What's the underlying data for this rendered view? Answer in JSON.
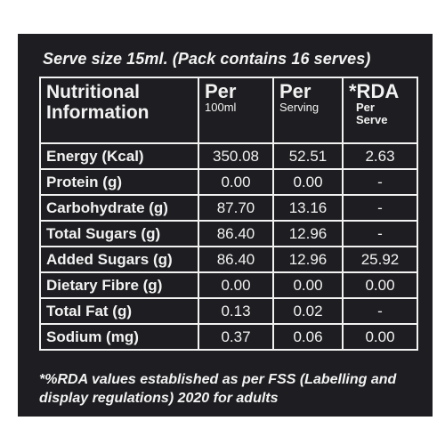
{
  "serve_line": "Serve size 15ml. (Pack contains 16 serves)",
  "header": {
    "col1": "Nutritional Information",
    "col2_main": "Per",
    "col2_sub": "100ml",
    "col3_main": "Per",
    "col3_sub": "Serving",
    "col4_main": "*RDA",
    "col4_sub1": "Per",
    "col4_sub2": "Serve"
  },
  "rows": [
    {
      "name": "Energy (Kcal)",
      "per100": "350.08",
      "serving": "52.51",
      "rda": "2.63"
    },
    {
      "name": "Protein (g)",
      "per100": "0.00",
      "serving": "0.00",
      "rda": "-"
    },
    {
      "name": "Carbohydrate (g)",
      "per100": "87.70",
      "serving": "13.16",
      "rda": "-"
    },
    {
      "name": "Total Sugars (g)",
      "per100": "86.40",
      "serving": "12.96",
      "rda": "-"
    },
    {
      "name": "Added Sugars (g)",
      "per100": "86.40",
      "serving": "12.96",
      "rda": "25.92"
    },
    {
      "name": "Dietary Fibre (g)",
      "per100": "0.00",
      "serving": "0.00",
      "rda": "0.00"
    },
    {
      "name": "Total Fat (g)",
      "per100": "0.13",
      "serving": "0.02",
      "rda": "-"
    },
    {
      "name": "Sodium (mg)",
      "per100": "0.37",
      "serving": "0.06",
      "rda": "0.00"
    }
  ],
  "footnote": "*%RDA values established as per FSS (Labelling and display regulations) 2020 for adults",
  "colors": {
    "background": "#1e1e22",
    "text": "#f2f2f2"
  }
}
